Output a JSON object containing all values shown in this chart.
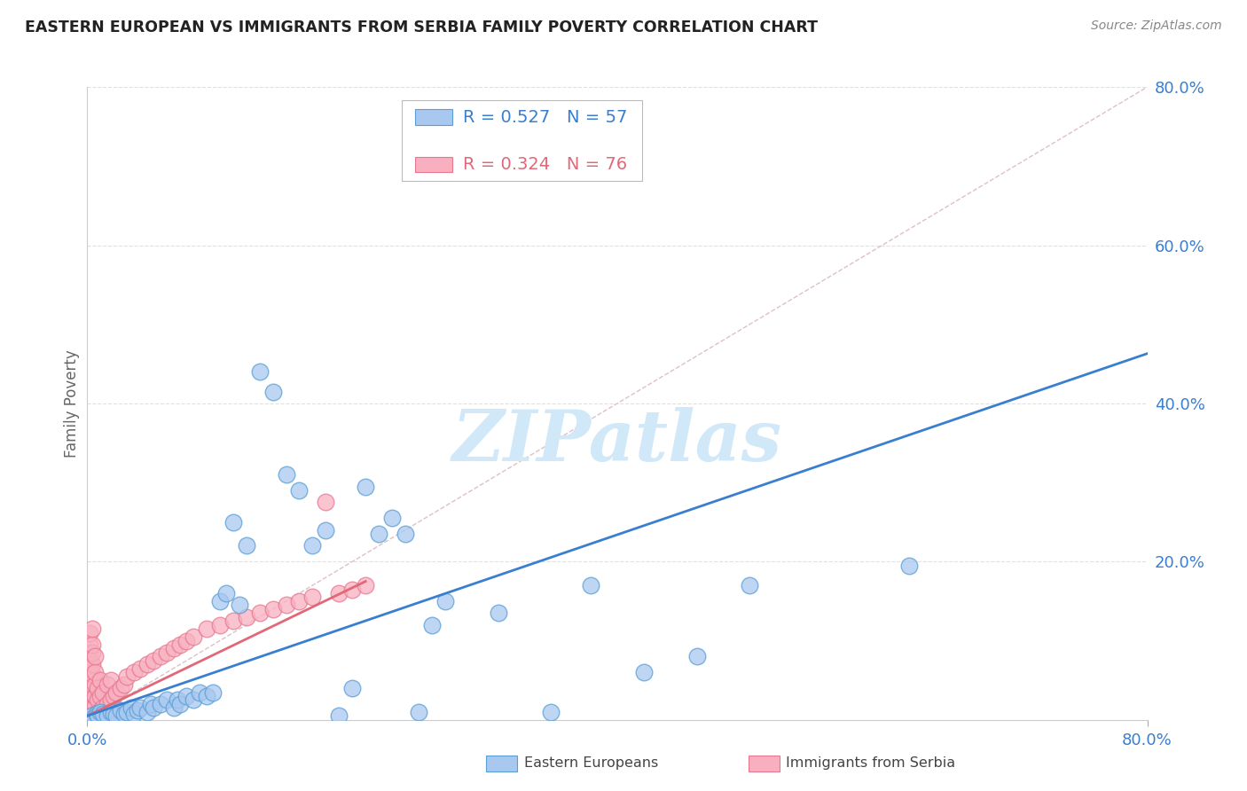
{
  "title": "EASTERN EUROPEAN VS IMMIGRANTS FROM SERBIA FAMILY POVERTY CORRELATION CHART",
  "source": "Source: ZipAtlas.com",
  "ylabel": "Family Poverty",
  "xmin": 0.0,
  "xmax": 0.8,
  "ymin": 0.0,
  "ymax": 0.8,
  "ytick_labels": [
    "20.0%",
    "40.0%",
    "60.0%",
    "80.0%"
  ],
  "ytick_values": [
    0.2,
    0.4,
    0.6,
    0.8
  ],
  "blue_R": "0.527",
  "blue_N": "57",
  "pink_R": "0.324",
  "pink_N": "76",
  "blue_scatter_color": "#a8c8f0",
  "blue_edge_color": "#5a9fd4",
  "pink_scatter_color": "#f8b0c0",
  "pink_edge_color": "#e87890",
  "blue_line_color": "#3a7ecf",
  "pink_line_color": "#e06878",
  "diag_color": "#dddddd",
  "axis_color": "#3a7ecf",
  "watermark_color": "#d0e8f8",
  "watermark_text": "ZIPatlas",
  "legend_box_color": "#eeeeee",
  "blue_scatter_x": [
    0.003,
    0.005,
    0.007,
    0.008,
    0.01,
    0.012,
    0.015,
    0.018,
    0.02,
    0.022,
    0.025,
    0.028,
    0.03,
    0.033,
    0.035,
    0.038,
    0.04,
    0.045,
    0.048,
    0.05,
    0.055,
    0.06,
    0.065,
    0.068,
    0.07,
    0.075,
    0.08,
    0.085,
    0.09,
    0.095,
    0.1,
    0.105,
    0.11,
    0.115,
    0.12,
    0.13,
    0.14,
    0.15,
    0.16,
    0.17,
    0.18,
    0.19,
    0.2,
    0.21,
    0.22,
    0.23,
    0.24,
    0.25,
    0.26,
    0.27,
    0.31,
    0.35,
    0.38,
    0.42,
    0.46,
    0.5,
    0.62
  ],
  "blue_scatter_y": [
    0.005,
    0.003,
    0.008,
    0.005,
    0.01,
    0.008,
    0.005,
    0.01,
    0.008,
    0.005,
    0.012,
    0.008,
    0.01,
    0.015,
    0.008,
    0.012,
    0.015,
    0.01,
    0.02,
    0.015,
    0.02,
    0.025,
    0.015,
    0.025,
    0.02,
    0.03,
    0.025,
    0.035,
    0.03,
    0.035,
    0.15,
    0.16,
    0.25,
    0.145,
    0.22,
    0.44,
    0.415,
    0.31,
    0.29,
    0.22,
    0.24,
    0.005,
    0.04,
    0.295,
    0.235,
    0.255,
    0.235,
    0.01,
    0.12,
    0.15,
    0.135,
    0.01,
    0.17,
    0.06,
    0.08,
    0.17,
    0.195
  ],
  "pink_scatter_x": [
    0.002,
    0.002,
    0.002,
    0.002,
    0.002,
    0.002,
    0.002,
    0.002,
    0.002,
    0.002,
    0.002,
    0.002,
    0.002,
    0.002,
    0.002,
    0.002,
    0.002,
    0.002,
    0.002,
    0.002,
    0.004,
    0.004,
    0.004,
    0.004,
    0.004,
    0.004,
    0.004,
    0.004,
    0.004,
    0.004,
    0.006,
    0.006,
    0.006,
    0.006,
    0.006,
    0.006,
    0.008,
    0.008,
    0.008,
    0.01,
    0.01,
    0.01,
    0.012,
    0.012,
    0.015,
    0.015,
    0.018,
    0.018,
    0.02,
    0.022,
    0.025,
    0.028,
    0.03,
    0.035,
    0.04,
    0.045,
    0.05,
    0.055,
    0.06,
    0.065,
    0.07,
    0.075,
    0.08,
    0.09,
    0.1,
    0.11,
    0.12,
    0.13,
    0.14,
    0.15,
    0.16,
    0.17,
    0.18,
    0.19,
    0.2,
    0.21
  ],
  "pink_scatter_y": [
    0.0,
    0.0,
    0.0,
    0.0,
    0.0,
    0.005,
    0.008,
    0.012,
    0.015,
    0.02,
    0.025,
    0.035,
    0.042,
    0.05,
    0.058,
    0.065,
    0.075,
    0.085,
    0.095,
    0.11,
    0.005,
    0.012,
    0.022,
    0.032,
    0.045,
    0.058,
    0.07,
    0.085,
    0.095,
    0.115,
    0.008,
    0.018,
    0.03,
    0.045,
    0.06,
    0.08,
    0.01,
    0.025,
    0.04,
    0.012,
    0.03,
    0.05,
    0.015,
    0.035,
    0.02,
    0.045,
    0.025,
    0.05,
    0.03,
    0.035,
    0.04,
    0.045,
    0.055,
    0.06,
    0.065,
    0.07,
    0.075,
    0.08,
    0.085,
    0.09,
    0.095,
    0.1,
    0.105,
    0.115,
    0.12,
    0.125,
    0.13,
    0.135,
    0.14,
    0.145,
    0.15,
    0.155,
    0.275,
    0.16,
    0.165,
    0.17
  ],
  "blue_line_x": [
    0.0,
    0.8
  ],
  "blue_line_y": [
    0.005,
    0.463
  ],
  "pink_line_x": [
    0.0,
    0.21
  ],
  "pink_line_y": [
    0.005,
    0.175
  ]
}
